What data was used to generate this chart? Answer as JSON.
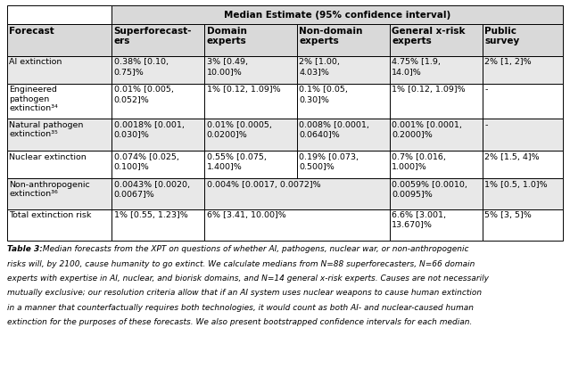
{
  "title": "Median Estimate (95% confidence interval)",
  "col_headers": [
    "Superforecast-\ners",
    "Domain\nexperts",
    "Non-domain\nexperts",
    "General x-risk\nexperts",
    "Public\nsurvey"
  ],
  "row_header_col": "Forecast",
  "row_labels": [
    "AI extinction",
    "Engineered\npathogen\nextinction³⁴",
    "Natural pathogen\nextinction³⁵",
    "Nuclear extinction",
    "Non-anthropogenic\nextinction³⁶",
    "Total extinction risk"
  ],
  "cells": [
    [
      "0.38% [0.10,\n0.75]%",
      "3% [0.49,\n10.00]%",
      "2% [1.00,\n4.03]%",
      "4.75% [1.9,\n14.0]%",
      "2% [1, 2]%"
    ],
    [
      "0.01% [0.005,\n0.052]%",
      "1% [0.12, 1.09]%",
      "0.1% [0.05,\n0.30]%",
      "1% [0.12, 1.09]%",
      "-"
    ],
    [
      "0.0018% [0.001,\n0.030]%",
      "0.01% [0.0005,\n0.0200]%",
      "0.008% [0.0001,\n0.0640]%",
      "0.001% [0.0001,\n0.2000]%",
      "-"
    ],
    [
      "0.074% [0.025,\n0.100]%",
      "0.55% [0.075,\n1.400]%",
      "0.19% [0.073,\n0.500]%",
      "0.7% [0.016,\n1.000]%",
      "2% [1.5, 4]%"
    ],
    [
      "0.0043% [0.0020,\n0.0067]%",
      "0.004% [0.0017, 0.0072]%",
      "",
      "0.0059% [0.0010,\n0.0095]%",
      "1% [0.5, 1.0]%"
    ],
    [
      "1% [0.55, 1.23]%",
      "6% [3.41, 10.00]%",
      "",
      "6.6% [3.001,\n13.670]%",
      "5% [3, 5]%"
    ]
  ],
  "merged_rows": [
    4,
    5
  ],
  "caption_bold": "Table 3:",
  "caption_rest": " Median forecasts from the XPT on questions of whether AI, pathogens, nuclear war, or non-anthropogenic risks will, by 2100, cause humanity to go extinct. We calculate medians from N=88 superforecasters, N=66 domain experts with expertise in AI, nuclear, and biorisk domains, and N=14 general x-risk experts. Causes are not necessarily mutually exclusive; our resolution criteria allow that if an AI system uses nuclear weapons to cause human extinction in a manner that counterfactually requires both technologies, it would count as both AI- and nuclear-caused human extinction for the purposes of these forecasts. We also present bootstrapped confidence intervals for each median.",
  "col_widths_rel": [
    1.75,
    1.55,
    1.55,
    1.55,
    1.55,
    1.35
  ],
  "header_bg": "#d9d9d9",
  "white_bg": "#ffffff",
  "row_bg_even": "#e8e8e8",
  "row_bg_odd": "#ffffff",
  "border_color": "#000000",
  "font_size": 6.8,
  "header_font_size": 7.5,
  "caption_font_size": 6.5,
  "lw": 0.7
}
